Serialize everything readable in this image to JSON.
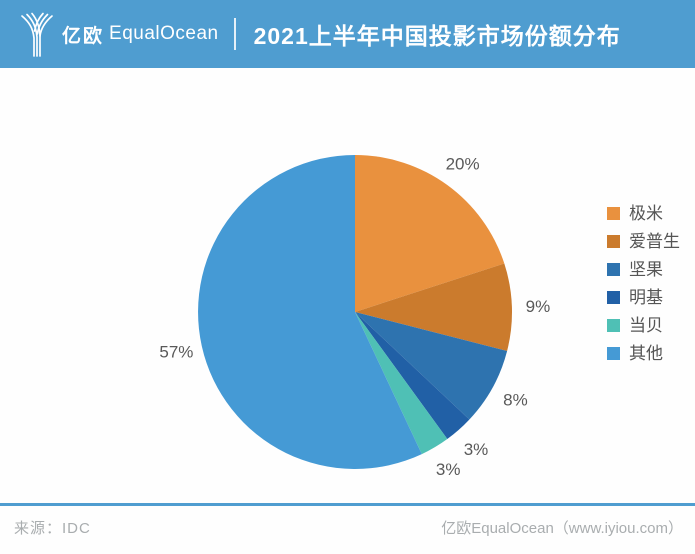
{
  "header": {
    "logo_cn": "亿欧",
    "logo_en": "EqualOcean",
    "title": "2021上半年中国投影市场份额分布"
  },
  "chart_data": {
    "type": "pie",
    "title": "2021上半年中国投影市场份额分布",
    "start_angle": "top",
    "direction": "clockwise",
    "legend_position": "right",
    "slices": [
      {
        "label": "极米",
        "value": 20,
        "display": "20%",
        "color": "#E9913E"
      },
      {
        "label": "爱普生",
        "value": 9,
        "display": "9%",
        "color": "#CB7B2D"
      },
      {
        "label": "坚果",
        "value": 8,
        "display": "8%",
        "color": "#2E73AF"
      },
      {
        "label": "明基",
        "value": 3,
        "display": "3%",
        "color": "#2160A6"
      },
      {
        "label": "当贝",
        "value": 3,
        "display": "3%",
        "color": "#4FC0B5"
      },
      {
        "label": "其他",
        "value": 57,
        "display": "57%",
        "color": "#459AD5"
      }
    ]
  },
  "footer": {
    "source": "来源：IDC",
    "credit": "亿欧EqualOcean（www.iyiou.com）"
  },
  "colors": {
    "header_bg": "#4F9DD0",
    "footer_rule": "#4F9DD0",
    "slice_label_text": "#595959",
    "legend_text": "#555555",
    "footer_text": "#A9ADAF"
  }
}
